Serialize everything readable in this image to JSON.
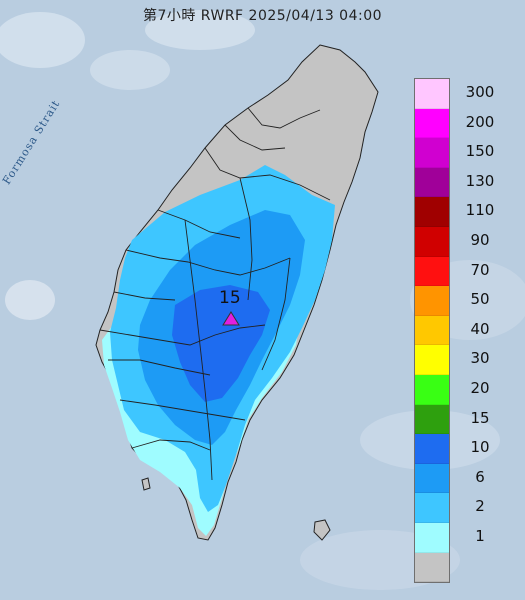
{
  "title": "第7小時  RWRF 2025/04/13 04:00",
  "strait_label": "Formosa Strait",
  "peak_value": "15",
  "colors": {
    "sea": "#b9cde0",
    "land_gray": "#c4c4c4",
    "rain_1": "#9ffcff",
    "rain_2": "#3ec6ff",
    "rain_6": "#1d9bf5",
    "rain_10": "#1e6cf0",
    "marker": "#e01fe0"
  },
  "legend": [
    {
      "label": "300",
      "color": "#ffc6ff"
    },
    {
      "label": "200",
      "color": "#ff00ff"
    },
    {
      "label": "150",
      "color": "#d000d0"
    },
    {
      "label": "130",
      "color": "#a00099"
    },
    {
      "label": "110",
      "color": "#a00000"
    },
    {
      "label": "90",
      "color": "#d00000"
    },
    {
      "label": "70",
      "color": "#ff1010"
    },
    {
      "label": "50",
      "color": "#ff9400"
    },
    {
      "label": "40",
      "color": "#ffc800"
    },
    {
      "label": "30",
      "color": "#ffff00"
    },
    {
      "label": "20",
      "color": "#39ff14"
    },
    {
      "label": "15",
      "color": "#2ea00e"
    },
    {
      "label": "10",
      "color": "#1e6cf0"
    },
    {
      "label": "6",
      "color": "#1d9bf5"
    },
    {
      "label": "2",
      "color": "#3ec6ff"
    },
    {
      "label": "1",
      "color": "#9ffcff"
    },
    {
      "label": "",
      "color": "#c4c4c4"
    }
  ]
}
